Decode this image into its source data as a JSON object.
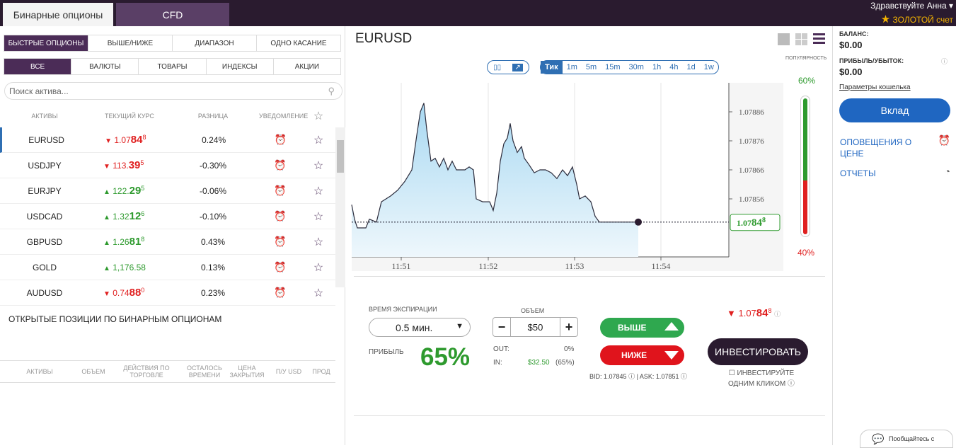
{
  "tabs": {
    "binary": "Бинарные опционы",
    "cfd": "CFD"
  },
  "user": {
    "greeting": "Здравствуйте Анна",
    "account": "ЗОЛОТОЙ счет",
    "star": "★"
  },
  "modes": [
    "БЫСТРЫЕ ОПЦИОНЫ",
    "ВЫШЕ/НИЖЕ",
    "ДИАПАЗОН",
    "ОДНО КАСАНИЕ"
  ],
  "filters": [
    "ВСЕ",
    "ВАЛЮТЫ",
    "ТОВАРЫ",
    "ИНДЕКСЫ",
    "АКЦИИ"
  ],
  "search": {
    "placeholder": "Поиск актива...",
    "icon": "🔍"
  },
  "table": {
    "headers": [
      "АКТИВЫ",
      "ТЕКУЩИЙ КУРС",
      "РАЗНИЦА",
      "УВЕДОМЛЕНИЕ",
      "☆"
    ],
    "rows": [
      {
        "name": "EURUSD",
        "dir": "▼",
        "pre": "1.07",
        "big": "84",
        "sup": "8",
        "change": "0.24%",
        "cls": "dn",
        "sel": true
      },
      {
        "name": "USDJPY",
        "dir": "▼",
        "pre": "113.",
        "big": "39",
        "sup": "5",
        "change": "-0.30%",
        "cls": "dn",
        "sel": false
      },
      {
        "name": "EURJPY",
        "dir": "▲",
        "pre": "122.",
        "big": "29",
        "sup": "5",
        "change": "-0.06%",
        "cls": "up",
        "sel": false
      },
      {
        "name": "USDCAD",
        "dir": "▲",
        "pre": "1.32",
        "big": "12",
        "sup": "6",
        "change": "-0.10%",
        "cls": "up",
        "sel": false
      },
      {
        "name": "GBPUSD",
        "dir": "▲",
        "pre": "1.26",
        "big": "81",
        "sup": "8",
        "change": "0.43%",
        "cls": "up",
        "sel": false
      },
      {
        "name": "GOLD",
        "dir": "▲",
        "pre": "1,176.58",
        "big": "",
        "sup": "",
        "change": "0.13%",
        "cls": "up",
        "sel": false
      },
      {
        "name": "AUDUSD",
        "dir": "▼",
        "pre": "0.74",
        "big": "88",
        "sup": "0",
        "change": "0.23%",
        "cls": "dn",
        "sel": false
      }
    ],
    "alarm_icon": "⏰",
    "star_icon": "☆"
  },
  "open": {
    "title": "ОТКРЫТЫЕ ПОЗИЦИИ ПО БИНАРНЫМ ОПЦИОНАМ",
    "headers": [
      "АКТИВЫ",
      "ОБЪЕМ",
      "ДЕЙСТВИЯ ПО ТОРГОВЛЕ",
      "ОСТАЛОСЬ ВРЕМЕНИ",
      "ЦЕНА ЗАКРЫТИЯ",
      "П/У USD",
      "ПРОД"
    ]
  },
  "chart": {
    "symbol": "EURUSD",
    "popularity": "ПОПУЛЯРНОСТЬ",
    "up_pct": "60%",
    "down_pct": "40%",
    "times": [
      "Тик",
      "1m",
      "5m",
      "15m",
      "30m",
      "1h",
      "4h",
      "1d",
      "1w"
    ],
    "current": {
      "pre": "1.07",
      "big": "84",
      "sup": "8"
    }
  },
  "chart_data": {
    "type": "area",
    "title": "",
    "xlabel": "",
    "ylabel": "",
    "x_ticks": [
      "11:51",
      "11:52",
      "11:53",
      "11:54"
    ],
    "y_ticks": [
      1.07886,
      1.07876,
      1.07866,
      1.07856
    ],
    "ylim": [
      1.07836,
      1.07896
    ],
    "current_value": 1.07848,
    "points": [
      [
        0,
        1.07854
      ],
      [
        4,
        1.07849
      ],
      [
        8,
        1.07846
      ],
      [
        20,
        1.07846
      ],
      [
        25,
        1.07849
      ],
      [
        35,
        1.07848
      ],
      [
        42,
        1.07855
      ],
      [
        55,
        1.07857
      ],
      [
        65,
        1.07859
      ],
      [
        75,
        1.07862
      ],
      [
        85,
        1.07866
      ],
      [
        92,
        1.07878
      ],
      [
        97,
        1.07886
      ],
      [
        102,
        1.07889
      ],
      [
        106,
        1.0788
      ],
      [
        112,
        1.07869
      ],
      [
        118,
        1.0787
      ],
      [
        124,
        1.07867
      ],
      [
        130,
        1.0787
      ],
      [
        136,
        1.07866
      ],
      [
        142,
        1.07869
      ],
      [
        148,
        1.07866
      ],
      [
        154,
        1.07866
      ],
      [
        160,
        1.07866
      ],
      [
        166,
        1.07867
      ],
      [
        172,
        1.07866
      ],
      [
        176,
        1.07856
      ],
      [
        185,
        1.07855
      ],
      [
        195,
        1.07855
      ],
      [
        200,
        1.07852
      ],
      [
        205,
        1.07858
      ],
      [
        210,
        1.07869
      ],
      [
        215,
        1.07875
      ],
      [
        220,
        1.07877
      ],
      [
        224,
        1.07882
      ],
      [
        228,
        1.07876
      ],
      [
        234,
        1.07872
      ],
      [
        240,
        1.07874
      ],
      [
        244,
        1.0787
      ],
      [
        250,
        1.07868
      ],
      [
        258,
        1.07865
      ],
      [
        266,
        1.07866
      ],
      [
        274,
        1.07866
      ],
      [
        282,
        1.07865
      ],
      [
        290,
        1.07863
      ],
      [
        298,
        1.07866
      ],
      [
        305,
        1.07864
      ],
      [
        312,
        1.07867
      ],
      [
        318,
        1.07861
      ],
      [
        322,
        1.07856
      ],
      [
        330,
        1.07857
      ],
      [
        338,
        1.07855
      ],
      [
        344,
        1.0785
      ],
      [
        350,
        1.07848
      ],
      [
        405,
        1.07848
      ]
    ]
  },
  "trade": {
    "expiry_label": "ВРЕМЯ ЭКСПИРАЦИИ",
    "expiry": "0.5 мин.",
    "volume_label": "ОБЪЕМ",
    "volume": "$50",
    "profit_label": "ПРИБЫЛЬ",
    "profit": "65%",
    "out_label": "OUT:",
    "out_val": "0%",
    "in_label": "IN:",
    "in_val": "$32.50",
    "in_pct": "(65%)",
    "up_label": "ВЫШЕ",
    "down_label": "НИЖЕ",
    "bid": "BID: 1.07845",
    "ask": "ASK: 1.07851",
    "invest": "ИНВЕСТИРОВАТЬ",
    "one_click": "ИНВЕСТИРУЙТЕ ОДНИМ КЛИКОМ",
    "rate": {
      "pre": "1.07",
      "big": "84",
      "sup": "8"
    }
  },
  "account": {
    "balance_label": "БАЛАНС:",
    "balance": "$0.00",
    "pnl_label": "ПРИБЫЛЬ/УБЫТОК:",
    "pnl": "$0.00",
    "wallet_link": "Параметры кошелька",
    "deposit": "Вклад",
    "alerts": "ОПОВЕЩЕНИЯ О ЦЕНЕ",
    "reports": "ОТЧЕТЫ",
    "chat": "Пообщайтесь с"
  },
  "colors": {
    "accent": "#2a1b2f",
    "up": "#2e9a2e",
    "down": "#e02020",
    "link": "#1f66c1"
  }
}
